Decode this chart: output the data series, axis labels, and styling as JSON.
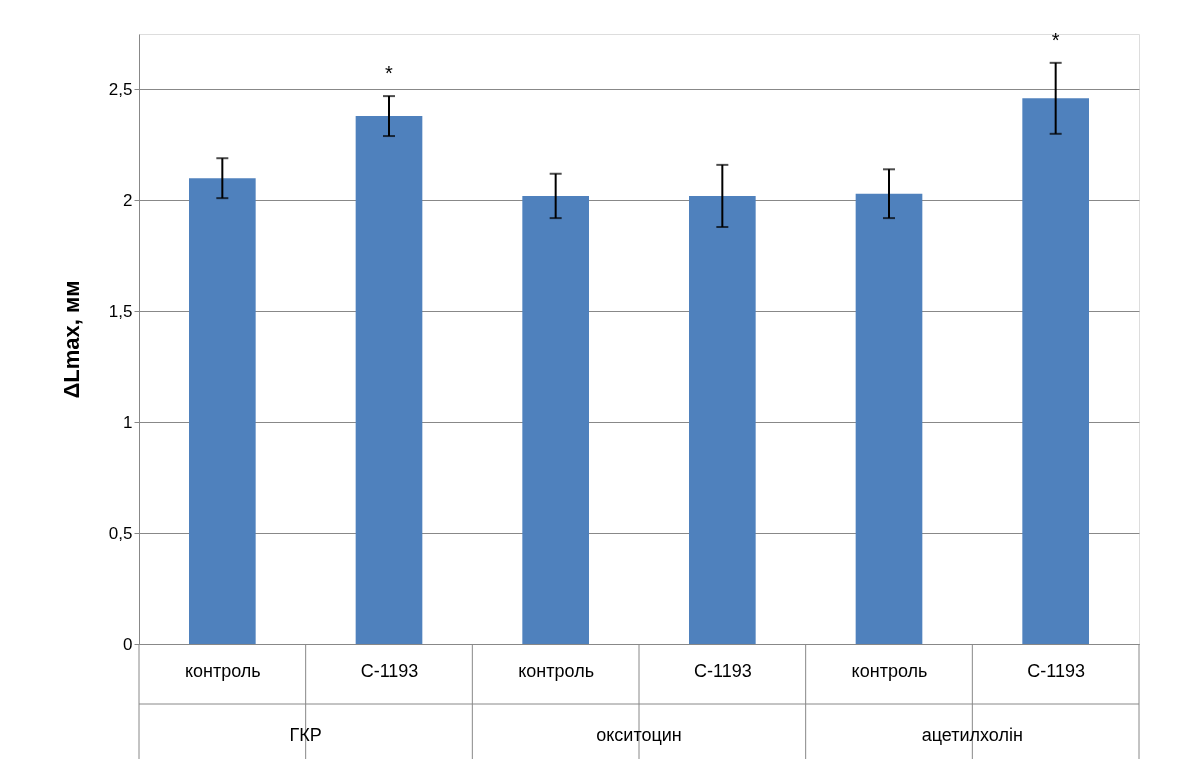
{
  "chart_data": {
    "type": "bar",
    "ylabel": "ΔLmax, мм",
    "categories": [
      "контроль",
      "С-1193",
      "контроль",
      "С-1193",
      "контроль",
      "С-1193"
    ],
    "values": [
      2.1,
      2.38,
      2.02,
      2.02,
      2.03,
      2.46
    ],
    "errors": [
      0.09,
      0.09,
      0.1,
      0.14,
      0.11,
      0.16
    ],
    "value_labels": [
      null,
      "*",
      null,
      null,
      null,
      "*"
    ],
    "annotations": [
      "ГКР",
      "окситоцин",
      "ацетилхолін"
    ],
    "color": "#4f81bd",
    "ylim": [
      0,
      2.75
    ],
    "yticks": [
      {
        "value": 0,
        "label": "0"
      },
      {
        "value": 0.5,
        "label": "0,5"
      },
      {
        "value": 1,
        "label": "1"
      },
      {
        "value": 1.5,
        "label": "1,5"
      },
      {
        "value": 2,
        "label": "2"
      },
      {
        "value": 2.5,
        "label": "2,5"
      }
    ],
    "grid": "y"
  }
}
